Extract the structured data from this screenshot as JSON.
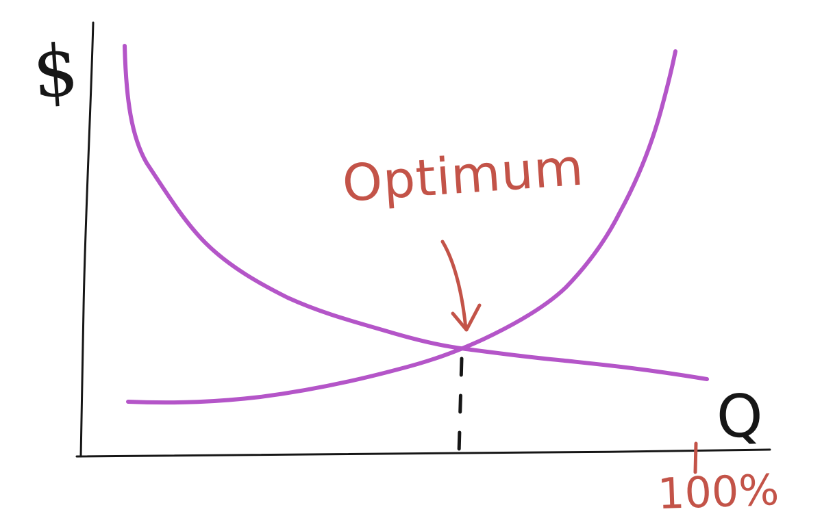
{
  "diagram": {
    "y_axis_label": "$",
    "x_axis_label": "Q",
    "annotation": "Optimum",
    "marker_label": "100%",
    "colors": {
      "curve": "#b455c8",
      "annotation": "#c35348",
      "axes": "#161616",
      "background": "#ffffff"
    }
  }
}
